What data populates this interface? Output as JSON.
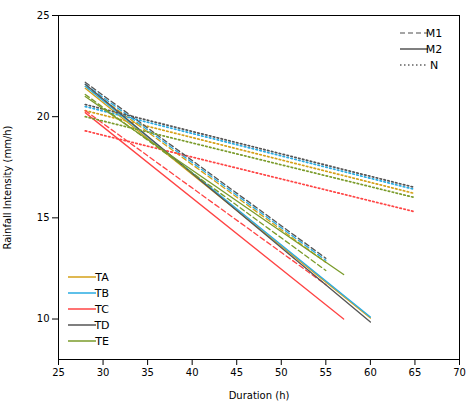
{
  "chart_data": {
    "type": "line",
    "xlabel": "Duration (h)",
    "ylabel": "Rainfall Intensity (mm/h)",
    "xlim": [
      25,
      70
    ],
    "ylim": [
      8,
      25
    ],
    "xticks": [
      25,
      30,
      35,
      40,
      45,
      50,
      55,
      60,
      65,
      70
    ],
    "yticks": [
      10,
      15,
      20,
      25
    ],
    "grid": false,
    "series": [
      {
        "name": "TA",
        "color": "#D4A017",
        "line_style": "dashed",
        "x": [
          28,
          55
        ],
        "values": [
          21.5,
          12.8
        ]
      },
      {
        "name": "TA",
        "color": "#D4A017",
        "line_style": "solid",
        "x": [
          28,
          60
        ],
        "values": [
          21.4,
          10.05
        ]
      },
      {
        "name": "TA",
        "color": "#D4A017",
        "line_style": "dotted",
        "x": [
          28,
          65
        ],
        "values": [
          20.3,
          16.2
        ]
      },
      {
        "name": "TB",
        "color": "#29ABE2",
        "line_style": "dashed",
        "x": [
          28,
          55
        ],
        "values": [
          21.6,
          12.9
        ]
      },
      {
        "name": "TB",
        "color": "#29ABE2",
        "line_style": "solid",
        "x": [
          28,
          60
        ],
        "values": [
          21.5,
          10.1
        ]
      },
      {
        "name": "TB",
        "color": "#29ABE2",
        "line_style": "dotted",
        "x": [
          28,
          65
        ],
        "values": [
          20.5,
          16.4
        ]
      },
      {
        "name": "TC",
        "color": "#FF4444",
        "line_style": "dashed",
        "x": [
          28,
          55
        ],
        "values": [
          20.3,
          11.7
        ]
      },
      {
        "name": "TC",
        "color": "#FF4444",
        "line_style": "solid",
        "x": [
          28,
          57
        ],
        "values": [
          20.2,
          10.0
        ]
      },
      {
        "name": "TC",
        "color": "#FF4444",
        "line_style": "dotted",
        "x": [
          28,
          65
        ],
        "values": [
          19.3,
          15.3
        ]
      },
      {
        "name": "TD",
        "color": "#555555",
        "line_style": "dashed",
        "x": [
          28,
          55
        ],
        "values": [
          21.7,
          13.0
        ]
      },
      {
        "name": "TD",
        "color": "#555555",
        "line_style": "solid",
        "x": [
          28,
          60
        ],
        "values": [
          21.6,
          9.85
        ]
      },
      {
        "name": "TD",
        "color": "#555555",
        "line_style": "dotted",
        "x": [
          28,
          65
        ],
        "values": [
          20.6,
          16.5
        ]
      },
      {
        "name": "TE",
        "color": "#7A9B2A",
        "line_style": "dashed",
        "x": [
          28,
          55
        ],
        "values": [
          21.1,
          12.4
        ]
      },
      {
        "name": "TE",
        "color": "#7A9B2A",
        "line_style": "solid",
        "x": [
          28,
          57
        ],
        "values": [
          21.0,
          12.2
        ]
      },
      {
        "name": "TE",
        "color": "#7A9B2A",
        "line_style": "dotted",
        "x": [
          28,
          65
        ],
        "values": [
          20.0,
          16.0
        ]
      }
    ],
    "legends": [
      {
        "legend": "upper right",
        "entries": [
          {
            "name": "M1",
            "line_style": "dashed",
            "color": "#888888"
          },
          {
            "name": "M2",
            "line_style": "solid",
            "color": "#555555"
          },
          {
            "name": "N",
            "line_style": "dotted",
            "color": "#888888"
          }
        ]
      },
      {
        "legend": "lower left",
        "entries": [
          {
            "name": "TA",
            "line_style": "solid",
            "color": "#D4A017"
          },
          {
            "name": "TB",
            "line_style": "solid",
            "color": "#29ABE2"
          },
          {
            "name": "TC",
            "line_style": "solid",
            "color": "#FF4444"
          },
          {
            "name": "TD",
            "line_style": "solid",
            "color": "#555555"
          },
          {
            "name": "TE",
            "line_style": "solid",
            "color": "#7A9B2A"
          }
        ]
      }
    ]
  }
}
